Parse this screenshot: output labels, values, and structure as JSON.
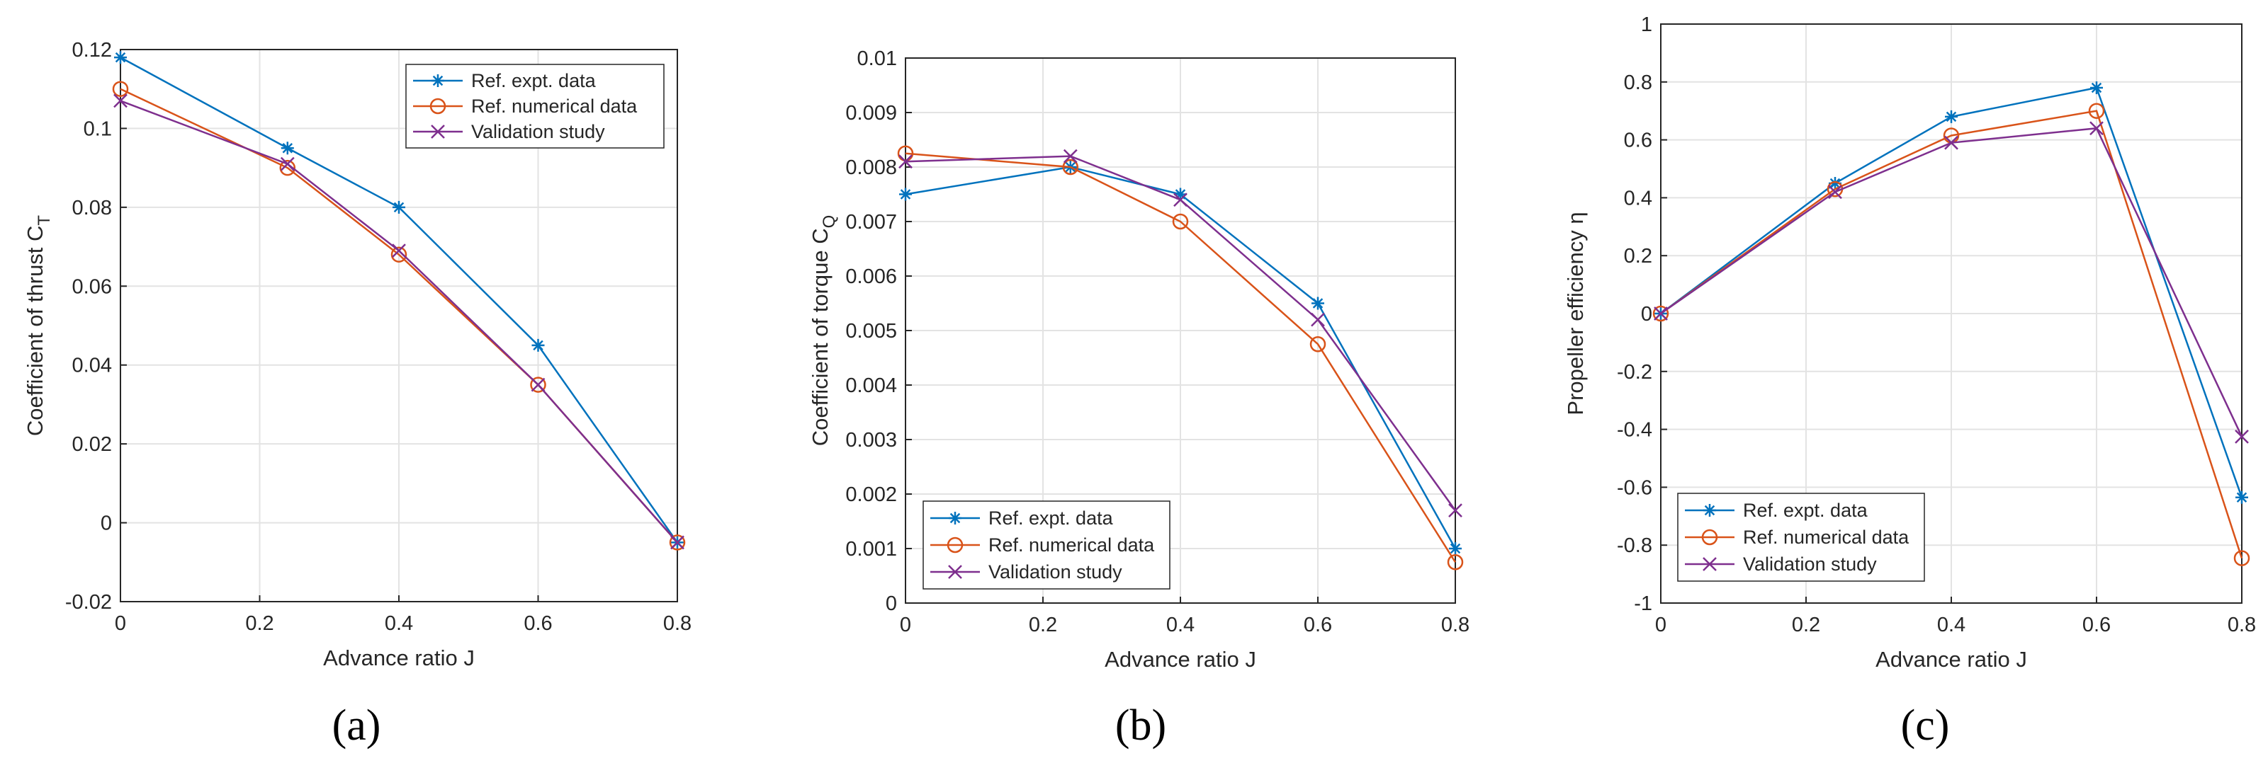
{
  "chart_data": [
    {
      "type": "line",
      "subfigure_label": "(a)",
      "xlabel": "Advance ratio J",
      "ylabel": "Coefficient of thrust C",
      "ylabel_sub": "T",
      "xlim": [
        0,
        0.8
      ],
      "ylim": [
        -0.02,
        0.12
      ],
      "xticks": [
        0,
        0.2,
        0.4,
        0.6,
        0.8
      ],
      "xtick_labels": [
        "0",
        "0.2",
        "0.4",
        "0.6",
        "0.8"
      ],
      "yticks": [
        -0.02,
        0,
        0.02,
        0.04,
        0.06,
        0.08,
        0.1,
        0.12
      ],
      "ytick_labels": [
        "-0.02",
        "0",
        "0.02",
        "0.04",
        "0.06",
        "0.08",
        "0.1",
        "0.12"
      ],
      "grid": true,
      "legend_position": "top-right",
      "series": [
        {
          "name": "Ref. expt. data",
          "marker": "asterisk",
          "color": "#0072BD",
          "x": [
            0,
            0.24,
            0.4,
            0.6,
            0.8
          ],
          "y": [
            0.118,
            0.095,
            0.08,
            0.045,
            -0.005
          ]
        },
        {
          "name": "Ref. numerical data",
          "marker": "circle",
          "color": "#D95319",
          "x": [
            0,
            0.24,
            0.4,
            0.6,
            0.8
          ],
          "y": [
            0.11,
            0.09,
            0.068,
            0.035,
            -0.005
          ]
        },
        {
          "name": "Validation study",
          "marker": "x",
          "color": "#7E2F8E",
          "x": [
            0,
            0.24,
            0.4,
            0.6,
            0.8
          ],
          "y": [
            0.107,
            0.091,
            0.069,
            0.035,
            -0.005
          ]
        }
      ]
    },
    {
      "type": "line",
      "subfigure_label": "(b)",
      "xlabel": "Advance ratio J",
      "ylabel": "Coefficient of torque C",
      "ylabel_sub": "Q",
      "xlim": [
        0,
        0.8
      ],
      "ylim": [
        0,
        0.01
      ],
      "xticks": [
        0,
        0.2,
        0.4,
        0.6,
        0.8
      ],
      "xtick_labels": [
        "0",
        "0.2",
        "0.4",
        "0.6",
        "0.8"
      ],
      "yticks": [
        0,
        0.001,
        0.002,
        0.003,
        0.004,
        0.005,
        0.006,
        0.007,
        0.008,
        0.009,
        0.01
      ],
      "ytick_labels": [
        "0",
        "0.001",
        "0.002",
        "0.003",
        "0.004",
        "0.005",
        "0.006",
        "0.007",
        "0.008",
        "0.009",
        "0.01"
      ],
      "grid": true,
      "legend_position": "bottom-left",
      "series": [
        {
          "name": "Ref. expt. data",
          "marker": "asterisk",
          "color": "#0072BD",
          "x": [
            0,
            0.24,
            0.4,
            0.6,
            0.8
          ],
          "y": [
            0.0075,
            0.008,
            0.0075,
            0.0055,
            0.001
          ]
        },
        {
          "name": "Ref. numerical data",
          "marker": "circle",
          "color": "#D95319",
          "x": [
            0,
            0.24,
            0.4,
            0.6,
            0.8
          ],
          "y": [
            0.00825,
            0.008,
            0.007,
            0.00475,
            0.00075
          ]
        },
        {
          "name": "Validation study",
          "marker": "x",
          "color": "#7E2F8E",
          "x": [
            0,
            0.24,
            0.4,
            0.6,
            0.8
          ],
          "y": [
            0.0081,
            0.0082,
            0.0074,
            0.0052,
            0.0017
          ]
        }
      ]
    },
    {
      "type": "line",
      "subfigure_label": "(c)",
      "xlabel": "Advance ratio J",
      "ylabel": "Propeller efficiency η",
      "ylabel_sub": "",
      "xlim": [
        0,
        0.8
      ],
      "ylim": [
        -1,
        1
      ],
      "xticks": [
        0,
        0.2,
        0.4,
        0.6,
        0.8
      ],
      "xtick_labels": [
        "0",
        "0.2",
        "0.4",
        "0.6",
        "0.8"
      ],
      "yticks": [
        -1,
        -0.8,
        -0.6,
        -0.4,
        -0.2,
        0,
        0.2,
        0.4,
        0.6,
        0.8,
        1
      ],
      "ytick_labels": [
        "-1",
        "-0.8",
        "-0.6",
        "-0.4",
        "-0.2",
        "0",
        "0.2",
        "0.4",
        "0.6",
        "0.8",
        "1"
      ],
      "grid": true,
      "legend_position": "bottom-left",
      "series": [
        {
          "name": "Ref. expt. data",
          "marker": "asterisk",
          "color": "#0072BD",
          "x": [
            0,
            0.24,
            0.4,
            0.6,
            0.8
          ],
          "y": [
            0,
            0.45,
            0.68,
            0.78,
            -0.635
          ]
        },
        {
          "name": "Ref. numerical data",
          "marker": "circle",
          "color": "#D95319",
          "x": [
            0,
            0.24,
            0.4,
            0.6,
            0.8
          ],
          "y": [
            0,
            0.43,
            0.615,
            0.7,
            -0.845
          ]
        },
        {
          "name": "Validation study",
          "marker": "x",
          "color": "#7E2F8E",
          "x": [
            0,
            0.24,
            0.4,
            0.6,
            0.8
          ],
          "y": [
            0,
            0.42,
            0.59,
            0.64,
            -0.425
          ]
        }
      ]
    }
  ]
}
